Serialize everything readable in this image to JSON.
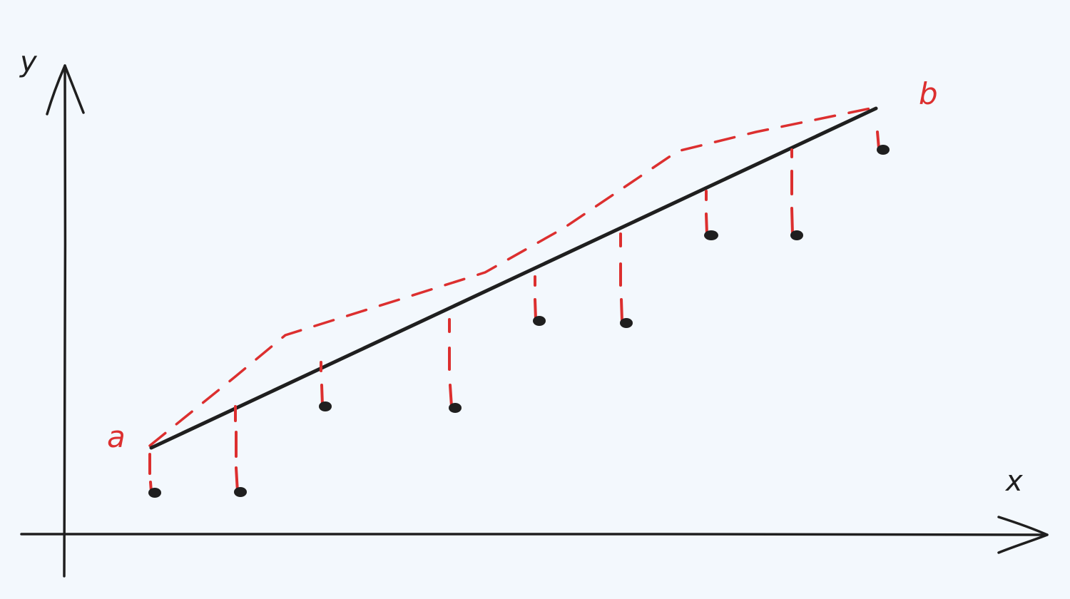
{
  "labels": {
    "x_axis": "x",
    "y_axis": "y",
    "start": "a",
    "end": "b"
  },
  "colors": {
    "background": "#f3f8fd",
    "ink": "#1f1f1f",
    "accent": "#dc2f2f"
  }
}
